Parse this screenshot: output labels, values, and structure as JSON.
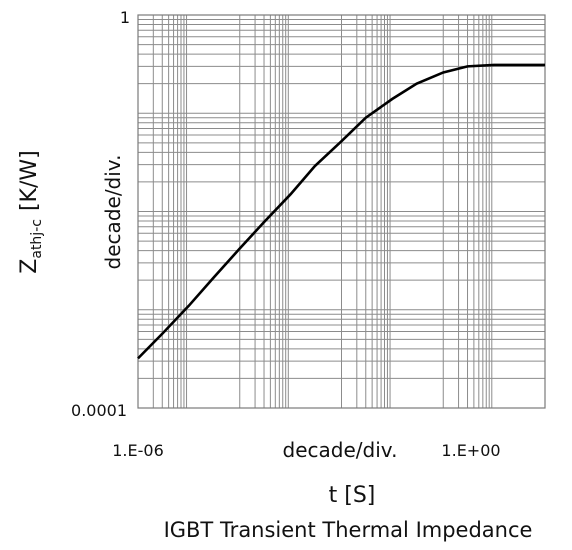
{
  "chart_data": {
    "type": "line",
    "title": "IGBT Transient Thermal Impedance",
    "xlabel": "t [S]",
    "ylabel": {
      "main": "Z",
      "sub": "athj-c",
      "unit": "[K/W]"
    },
    "x_scale": "log",
    "y_scale": "log",
    "xlim": [
      1e-07,
      10
    ],
    "ylim": [
      0.0001,
      1
    ],
    "x_tick_labels": [
      {
        "value": 1e-06,
        "label": "1.E-06"
      },
      {
        "value": 1,
        "label": "1.E+00"
      }
    ],
    "y_tick_labels": [
      {
        "value": 1,
        "label": "1"
      },
      {
        "value": 0.0001,
        "label": "0.0001"
      }
    ],
    "x_scale_note": "decade/div.",
    "y_scale_note": "decade/div.",
    "grid": true,
    "series": [
      {
        "color": "#000000",
        "x": [
          1e-07,
          3e-07,
          1e-06,
          3e-06,
          1e-05,
          3e-05,
          0.0001,
          0.0003,
          0.001,
          0.003,
          0.01,
          0.03,
          0.1,
          0.3,
          1,
          3,
          10
        ],
        "y": [
          0.00032,
          0.00057,
          0.0011,
          0.0021,
          0.0042,
          0.0078,
          0.015,
          0.029,
          0.052,
          0.09,
          0.14,
          0.2,
          0.26,
          0.3,
          0.31,
          0.31,
          0.31
        ]
      }
    ]
  }
}
